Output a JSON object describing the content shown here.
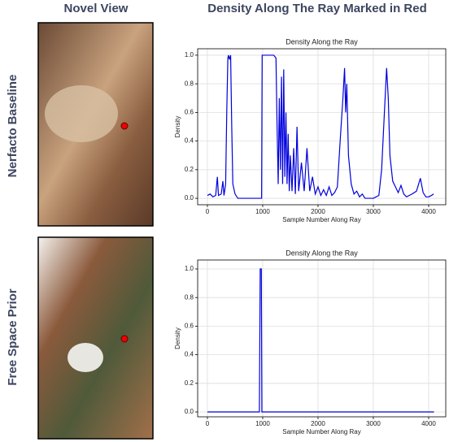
{
  "header": {
    "left": "Novel View",
    "right": "Density Along The Ray Marked in Red"
  },
  "rows": [
    "Nerfacto Baseline",
    "Free Space Prior"
  ],
  "chart_data": [
    {
      "type": "line",
      "title": "Density Along the Ray",
      "xlabel": "Sample Number Along Ray",
      "ylabel": "Density",
      "color": "#0000dd",
      "grid": true,
      "xlim": [
        -176,
        4309
      ],
      "ylim": [
        -0.045,
        1.045
      ],
      "xticks": [
        0,
        1000,
        2000,
        3000,
        4000
      ],
      "yticks": [
        {
          "value": 0,
          "label": "0.0"
        },
        0.2,
        0.4,
        0.6,
        0.8,
        {
          "value": 1,
          "label": "1.0"
        }
      ],
      "x": [
        0,
        50,
        100,
        150,
        180,
        200,
        250,
        280,
        300,
        330,
        350,
        370,
        380,
        400,
        420,
        440,
        460,
        500,
        550,
        700,
        950,
        980,
        990,
        1100,
        1200,
        1240,
        1260,
        1280,
        1300,
        1320,
        1340,
        1360,
        1380,
        1400,
        1420,
        1440,
        1460,
        1480,
        1500,
        1530,
        1560,
        1590,
        1620,
        1650,
        1700,
        1750,
        1800,
        1850,
        1900,
        1950,
        2000,
        2050,
        2100,
        2150,
        2200,
        2250,
        2300,
        2350,
        2400,
        2450,
        2480,
        2500,
        2520,
        2550,
        2600,
        2650,
        2700,
        2750,
        2800,
        2850,
        3000,
        3100,
        3150,
        3200,
        3240,
        3270,
        3300,
        3350,
        3400,
        3450,
        3500,
        3550,
        3600,
        3700,
        3780,
        3850,
        3900,
        3950,
        4000,
        4050,
        4090
      ],
      "values": [
        0.02,
        0.03,
        0.01,
        0.02,
        0.15,
        0.02,
        0.03,
        0.12,
        0.02,
        0.1,
        0.6,
        0.98,
        1.0,
        0.97,
        1.0,
        0.5,
        0.1,
        0.03,
        0.0,
        0.0,
        0.0,
        0.0,
        1.0,
        1.0,
        1.0,
        0.98,
        0.5,
        0.1,
        0.7,
        0.2,
        0.85,
        0.1,
        0.9,
        0.15,
        0.6,
        0.1,
        0.45,
        0.05,
        0.3,
        0.05,
        0.35,
        0.03,
        0.5,
        0.05,
        0.25,
        0.05,
        0.35,
        0.05,
        0.15,
        0.03,
        0.08,
        0.02,
        0.06,
        0.02,
        0.08,
        0.02,
        0.04,
        0.08,
        0.4,
        0.7,
        0.91,
        0.6,
        0.8,
        0.3,
        0.1,
        0.03,
        0.05,
        0.01,
        0.03,
        0.0,
        0.0,
        0.02,
        0.2,
        0.6,
        0.91,
        0.7,
        0.3,
        0.12,
        0.08,
        0.04,
        0.09,
        0.03,
        0.01,
        0.03,
        0.05,
        0.14,
        0.04,
        0.01,
        0.01,
        0.02,
        0.03
      ]
    },
    {
      "type": "line",
      "title": "Density Along the Ray",
      "xlabel": "Sample Number Along Ray",
      "ylabel": "Density",
      "color": "#0000dd",
      "grid": true,
      "xlim": [
        -176,
        4309
      ],
      "ylim": [
        -0.034,
        1.0625
      ],
      "xticks": [
        0,
        1000,
        2000,
        3000,
        4000
      ],
      "yticks": [
        {
          "value": 0,
          "label": "0.0"
        },
        0.2,
        0.4,
        0.6,
        0.8,
        {
          "value": 1,
          "label": "1.0"
        }
      ],
      "x": [
        0,
        940,
        955,
        975,
        985,
        4096
      ],
      "values": [
        0,
        0,
        1,
        1,
        0,
        0
      ]
    }
  ]
}
